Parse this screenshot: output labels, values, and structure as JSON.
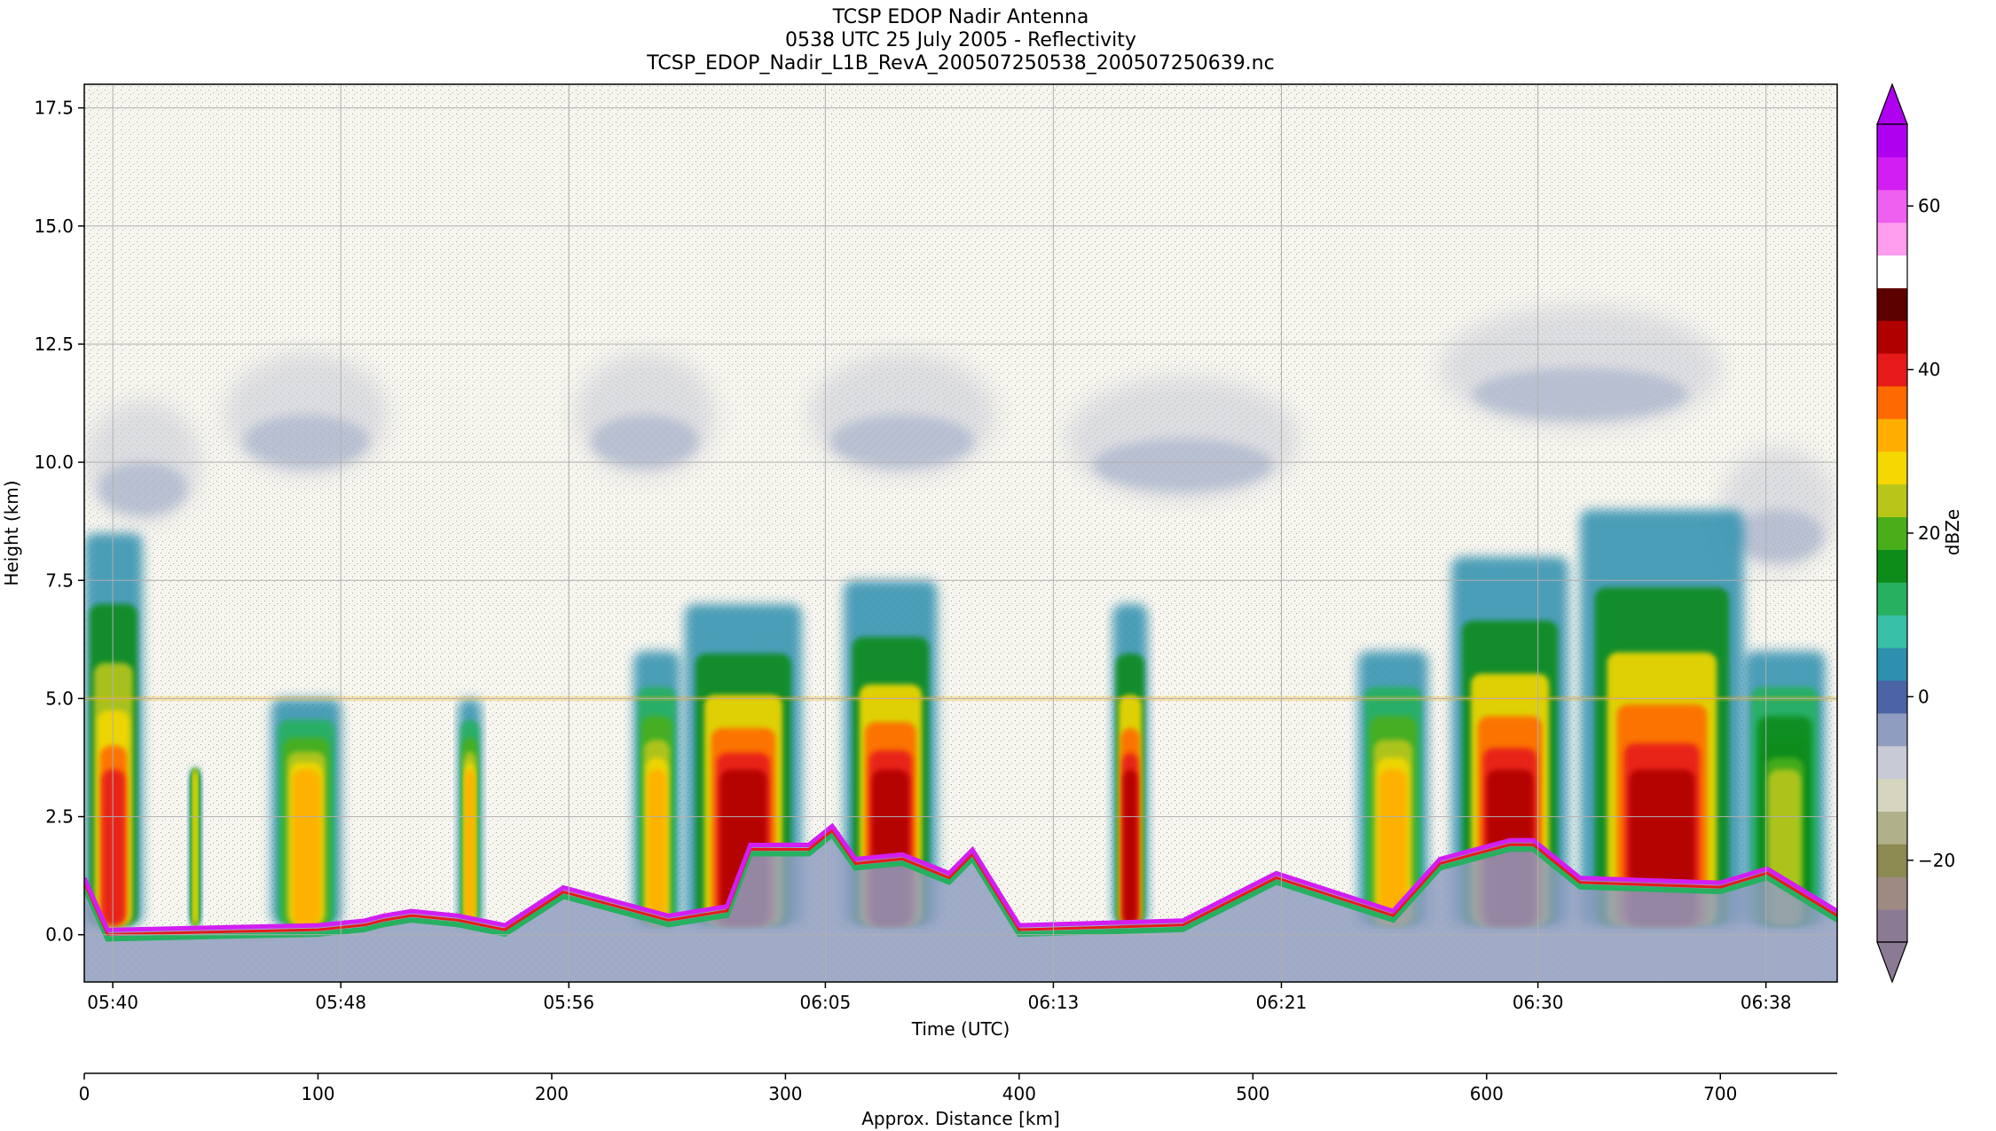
{
  "chart_data": {
    "type": "heatmap",
    "title": [
      "TCSP EDOP Nadir Antenna",
      "0538 UTC 25 July 2005 - Reflectivity",
      "TCSP_EDOP_Nadir_L1B_RevA_200507250538_200507250639.nc"
    ],
    "xlabel": "Time (UTC)",
    "ylabel": "Height (km)",
    "x2label": "Approx. Distance [km]",
    "grid": true,
    "ylim": [
      -1.0,
      18.0
    ],
    "yticks": [
      0.0,
      2.5,
      5.0,
      7.5,
      10.0,
      12.5,
      15.0,
      17.5
    ],
    "ytick_labels": [
      "0.0",
      "2.5",
      "5.0",
      "7.5",
      "10.0",
      "12.5",
      "15.0",
      "17.5"
    ],
    "xlim_minutes": [
      339.0,
      400.5
    ],
    "xticks_minutes": [
      340,
      348,
      356,
      365,
      373,
      381,
      390,
      398
    ],
    "xtick_labels": [
      "05:40",
      "05:48",
      "05:56",
      "06:05",
      "06:13",
      "06:21",
      "06:30",
      "06:38"
    ],
    "x2lim": [
      0,
      750
    ],
    "x2ticks": [
      0,
      100,
      200,
      300,
      400,
      500,
      600,
      700
    ],
    "x2tick_labels": [
      "0",
      "100",
      "200",
      "300",
      "400",
      "500",
      "600",
      "700"
    ],
    "colorbar": {
      "label": "dBZe",
      "range": [
        -30,
        70
      ],
      "ticks": [
        -20,
        0,
        20,
        40,
        60
      ],
      "tick_labels": [
        "−20",
        "0",
        "20",
        "40",
        "60"
      ],
      "extend": "both",
      "colors": [
        "#8a7a94",
        "#9e8a80",
        "#8c8a50",
        "#b0b08a",
        "#d6d6c0",
        "#c8cad6",
        "#8f9ec0",
        "#4a64a6",
        "#2e8fae",
        "#38c0a8",
        "#26b060",
        "#0e8c1a",
        "#4aae1a",
        "#b8c61a",
        "#f4d800",
        "#ffae00",
        "#ff6a00",
        "#e61a1a",
        "#b00000",
        "#5c0000",
        "#ffffff",
        "#ff9cee",
        "#ef5ff0",
        "#d21ef2",
        "#b000f0"
      ]
    },
    "features": {
      "surface_profile_km": [
        [
          0,
          1.2
        ],
        [
          10,
          0.1
        ],
        [
          100,
          0.2
        ],
        [
          120,
          0.3
        ],
        [
          128,
          0.4
        ],
        [
          140,
          0.5
        ],
        [
          160,
          0.4
        ],
        [
          180,
          0.2
        ],
        [
          205,
          1.0
        ],
        [
          250,
          0.4
        ],
        [
          275,
          0.6
        ],
        [
          285,
          1.9
        ],
        [
          310,
          1.9
        ],
        [
          320,
          2.3
        ],
        [
          330,
          1.6
        ],
        [
          350,
          1.7
        ],
        [
          370,
          1.3
        ],
        [
          380,
          1.8
        ],
        [
          400,
          0.2
        ],
        [
          470,
          0.3
        ],
        [
          510,
          1.3
        ],
        [
          560,
          0.5
        ],
        [
          580,
          1.6
        ],
        [
          610,
          2.0
        ],
        [
          620,
          2.0
        ],
        [
          640,
          1.2
        ],
        [
          700,
          1.1
        ],
        [
          720,
          1.4
        ],
        [
          750,
          0.5
        ]
      ],
      "convective_cells_km": [
        [
          0,
          25,
          8.5,
          38
        ],
        [
          45,
          50,
          3.5,
          26
        ],
        [
          80,
          110,
          5.0,
          30
        ],
        [
          160,
          170,
          5.0,
          30
        ],
        [
          235,
          255,
          6.0,
          30
        ],
        [
          257,
          307,
          7.0,
          44
        ],
        [
          325,
          365,
          7.5,
          44
        ],
        [
          440,
          455,
          7.0,
          44
        ],
        [
          545,
          575,
          6.0,
          30
        ],
        [
          585,
          635,
          8.0,
          44
        ],
        [
          640,
          710,
          9.0,
          44
        ],
        [
          710,
          745,
          6.0,
          22
        ]
      ],
      "bright_band_km": 5.0,
      "upper_cirrus_km": [
        [
          0,
          50,
          10.0
        ],
        [
          60,
          130,
          11.0
        ],
        [
          210,
          270,
          11.0
        ],
        [
          310,
          390,
          11.0
        ],
        [
          420,
          520,
          10.5
        ],
        [
          580,
          700,
          12.0
        ],
        [
          700,
          750,
          9.0
        ]
      ]
    }
  }
}
